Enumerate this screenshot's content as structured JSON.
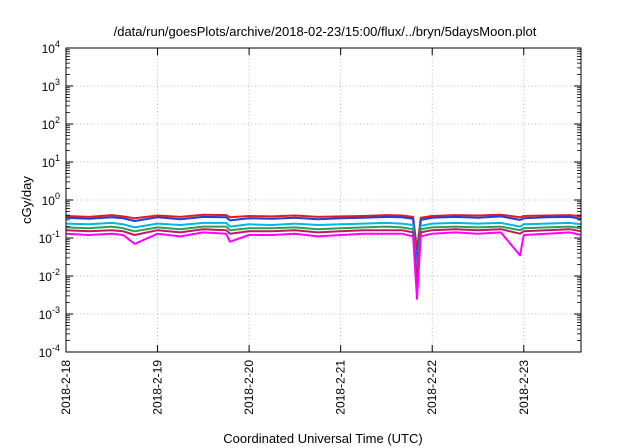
{
  "chart_data": {
    "type": "line",
    "title": "/data/run/goesPlots/archive/2018-02-23/15:00/flux/../bryn/5daysMoon.plot",
    "xlabel": "Coordinated Universal Time (UTC)",
    "ylabel": "cGy/day",
    "xlim": [
      "2018-02-18T00:00",
      "2018-02-23T15:00"
    ],
    "ylim": [
      0.0001,
      10000
    ],
    "yscale": "log",
    "grid": true,
    "legend": "none",
    "x_ticks": [
      "2018-2-18",
      "2018-2-19",
      "2018-2-20",
      "2018-2-21",
      "2018-2-22",
      "2018-2-23"
    ],
    "y_ticks": [
      {
        "base": "10",
        "exp": "4"
      },
      {
        "base": "10",
        "exp": "3"
      },
      {
        "base": "10",
        "exp": "2"
      },
      {
        "base": "10",
        "exp": "1"
      },
      {
        "base": "10",
        "exp": "0"
      },
      {
        "base": "10",
        "exp": "-1"
      },
      {
        "base": "10",
        "exp": "-2"
      },
      {
        "base": "10",
        "exp": "-3"
      },
      {
        "base": "10",
        "exp": "-4"
      }
    ],
    "x": [
      "2018-02-18T00:00",
      "2018-02-18T06:00",
      "2018-02-18T12:00",
      "2018-02-18T15:00",
      "2018-02-18T18:00",
      "2018-02-19T00:00",
      "2018-02-19T06:00",
      "2018-02-19T12:00",
      "2018-02-19T18:00",
      "2018-02-19T19:00",
      "2018-02-20T00:00",
      "2018-02-20T06:00",
      "2018-02-20T12:00",
      "2018-02-20T18:00",
      "2018-02-21T00:00",
      "2018-02-21T06:00",
      "2018-02-21T12:00",
      "2018-02-21T16:00",
      "2018-02-21T19:00",
      "2018-02-21T20:00",
      "2018-02-21T21:00",
      "2018-02-22T00:00",
      "2018-02-22T06:00",
      "2018-02-22T12:00",
      "2018-02-22T18:00",
      "2018-02-22T23:00",
      "2018-02-23T00:00",
      "2018-02-23T06:00",
      "2018-02-23T12:00",
      "2018-02-23T15:00"
    ],
    "series": [
      {
        "color": "#e41a1c",
        "values": [
          0.38,
          0.36,
          0.4,
          0.37,
          0.33,
          0.39,
          0.36,
          0.41,
          0.4,
          0.35,
          0.38,
          0.37,
          0.39,
          0.36,
          0.37,
          0.38,
          0.4,
          0.39,
          0.36,
          0.05,
          0.34,
          0.38,
          0.4,
          0.39,
          0.41,
          0.35,
          0.38,
          0.39,
          0.4,
          0.37
        ]
      },
      {
        "color": "#1f3fd8",
        "values": [
          0.34,
          0.32,
          0.35,
          0.33,
          0.28,
          0.35,
          0.31,
          0.36,
          0.35,
          0.29,
          0.33,
          0.32,
          0.34,
          0.31,
          0.33,
          0.34,
          0.36,
          0.35,
          0.32,
          0.02,
          0.3,
          0.34,
          0.36,
          0.34,
          0.37,
          0.3,
          0.33,
          0.35,
          0.36,
          0.32
        ]
      },
      {
        "color": "#00b6e6",
        "values": [
          0.24,
          0.23,
          0.25,
          0.23,
          0.19,
          0.24,
          0.22,
          0.25,
          0.25,
          0.2,
          0.23,
          0.22,
          0.24,
          0.22,
          0.23,
          0.24,
          0.25,
          0.24,
          0.22,
          0.01,
          0.21,
          0.24,
          0.25,
          0.24,
          0.25,
          0.2,
          0.23,
          0.24,
          0.25,
          0.23
        ]
      },
      {
        "color": "#2ca05a",
        "values": [
          0.19,
          0.18,
          0.2,
          0.18,
          0.15,
          0.19,
          0.17,
          0.2,
          0.2,
          0.16,
          0.18,
          0.18,
          0.19,
          0.17,
          0.18,
          0.19,
          0.2,
          0.19,
          0.17,
          0.008,
          0.17,
          0.19,
          0.2,
          0.19,
          0.2,
          0.16,
          0.18,
          0.19,
          0.2,
          0.18
        ]
      },
      {
        "color": "#c2185b",
        "values": [
          0.16,
          0.15,
          0.16,
          0.15,
          0.12,
          0.16,
          0.14,
          0.17,
          0.16,
          0.13,
          0.15,
          0.15,
          0.16,
          0.14,
          0.15,
          0.16,
          0.16,
          0.16,
          0.14,
          0.006,
          0.14,
          0.16,
          0.17,
          0.16,
          0.17,
          0.13,
          0.15,
          0.16,
          0.17,
          0.15
        ]
      },
      {
        "color": "#ff00ff",
        "values": [
          0.13,
          0.12,
          0.13,
          0.12,
          0.07,
          0.13,
          0.11,
          0.14,
          0.13,
          0.08,
          0.12,
          0.12,
          0.13,
          0.11,
          0.12,
          0.13,
          0.13,
          0.13,
          0.11,
          0.0025,
          0.11,
          0.13,
          0.14,
          0.13,
          0.14,
          0.035,
          0.12,
          0.13,
          0.14,
          0.12
        ]
      }
    ]
  }
}
